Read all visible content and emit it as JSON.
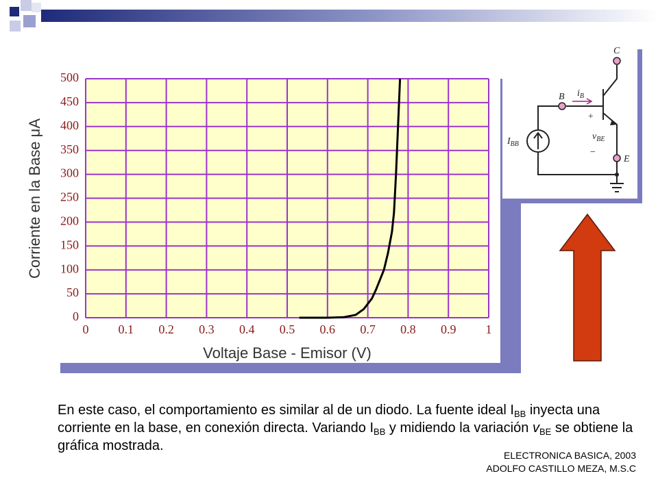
{
  "chart_data": {
    "type": "line",
    "xlabel": "Voltaje Base - Emisor (V)",
    "ylabel": "Corriente en la Base μA",
    "x": [
      0.53,
      0.6,
      0.64,
      0.67,
      0.69,
      0.71,
      0.72,
      0.74,
      0.75,
      0.76,
      0.765,
      0.77,
      0.775,
      0.78
    ],
    "values": [
      0,
      0,
      1,
      6,
      18,
      40,
      58,
      100,
      135,
      180,
      220,
      300,
      400,
      500
    ],
    "color": "#000000",
    "xlim": [
      0,
      1
    ],
    "xticks": [
      0,
      0.1,
      0.2,
      0.3,
      0.4,
      0.5,
      0.6,
      0.7,
      0.8,
      0.9,
      1
    ],
    "ylim": [
      0,
      500
    ],
    "yticks": [
      0,
      50,
      100,
      150,
      200,
      250,
      300,
      350,
      400,
      450,
      500
    ],
    "grid": true,
    "grid_color": "#9a33cc",
    "background": "#ffffcc"
  },
  "circuit": {
    "c": "C",
    "b": "B",
    "ib": "i",
    "ib_sub": "B",
    "plus": "+",
    "vbe": "v",
    "vbe_sub": "BE",
    "minus": "−",
    "e": "E",
    "ibb": "I",
    "ibb_sub": "BB"
  },
  "body": {
    "r0": "En este caso, el comportamiento es similar al de un diodo.  La fuente ideal I",
    "r1": "BB",
    "r2": " inyecta una corriente en la base, en conexión directa. Variando I",
    "r3": "BB",
    "r4": " y midiendo la variación ",
    "r5": "v",
    "r6": "BE",
    "r7": " se obtiene la gráfica mostrada."
  },
  "footer": {
    "line1": "ELECTRONICA BASICA, 2003",
    "line2": "ADOLFO CASTILLO MEZA, M.S.C"
  }
}
